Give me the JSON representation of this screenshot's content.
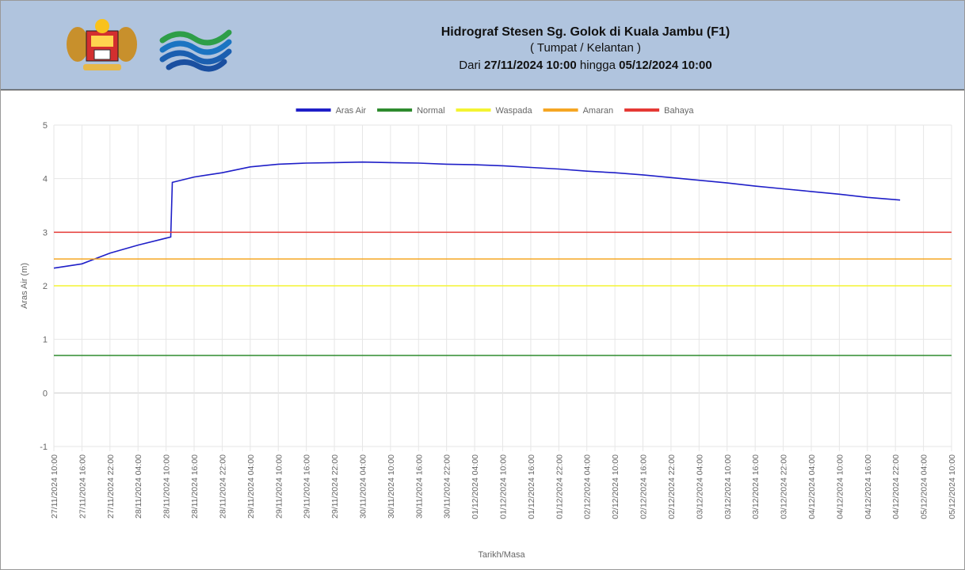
{
  "header": {
    "title": "Hidrograf Stesen Sg. Golok di Kuala Jambu (F1)",
    "subtitle": "( Tumpat / Kelantan )",
    "range_prefix": "Dari",
    "range_start": "27/11/2024 10:00",
    "range_mid": "hingga",
    "range_end": "05/12/2024 10:00"
  },
  "chart_data": {
    "type": "line",
    "ylabel": "Aras Air (m)",
    "xlabel": "Tarikh/Masa",
    "xlim": [
      "27/11/2024 10:00",
      "05/12/2024 10:00"
    ],
    "xticks": [
      "27/11/2024 10:00",
      "27/11/2024 16:00",
      "27/11/2024 22:00",
      "28/11/2024 04:00",
      "28/11/2024 10:00",
      "28/11/2024 16:00",
      "28/11/2024 22:00",
      "29/11/2024 04:00",
      "29/11/2024 10:00",
      "29/11/2024 16:00",
      "29/11/2024 22:00",
      "30/11/2024 04:00",
      "30/11/2024 10:00",
      "30/11/2024 16:00",
      "30/11/2024 22:00",
      "01/12/2024 04:00",
      "01/12/2024 10:00",
      "01/12/2024 16:00",
      "01/12/2024 22:00",
      "02/12/2024 04:00",
      "02/12/2024 10:00",
      "02/12/2024 16:00",
      "02/12/2024 22:00",
      "03/12/2024 04:00",
      "03/12/2024 10:00",
      "03/12/2024 16:00",
      "03/12/2024 22:00",
      "04/12/2024 04:00",
      "04/12/2024 10:00",
      "04/12/2024 16:00",
      "04/12/2024 22:00",
      "05/12/2024 04:00",
      "05/12/2024 10:00"
    ],
    "ylim": [
      -1,
      5
    ],
    "yticks": [
      -1,
      0,
      1,
      2,
      3,
      4,
      5
    ],
    "grid": true,
    "legend": "top",
    "series": [
      {
        "name": "Aras Air",
        "color": "#1f1fc8",
        "x": [
          "27/11/2024 10:00",
          "27/11/2024 16:00",
          "27/11/2024 22:00",
          "28/11/2024 04:00",
          "28/11/2024 10:00",
          "28/11/2024 11:00",
          "28/11/2024 11:20",
          "28/11/2024 16:00",
          "28/11/2024 22:00",
          "29/11/2024 04:00",
          "29/11/2024 10:00",
          "29/11/2024 16:00",
          "29/11/2024 22:00",
          "30/11/2024 04:00",
          "30/11/2024 10:00",
          "30/11/2024 16:00",
          "30/11/2024 22:00",
          "01/12/2024 04:00",
          "01/12/2024 10:00",
          "01/12/2024 16:00",
          "01/12/2024 22:00",
          "02/12/2024 04:00",
          "02/12/2024 10:00",
          "02/12/2024 16:00",
          "02/12/2024 22:00",
          "03/12/2024 04:00",
          "03/12/2024 10:00",
          "03/12/2024 16:00",
          "03/12/2024 22:00",
          "04/12/2024 04:00",
          "04/12/2024 10:00",
          "04/12/2024 16:00",
          "04/12/2024 23:00"
        ],
        "values": [
          2.33,
          2.41,
          2.61,
          2.76,
          2.89,
          2.91,
          3.93,
          4.03,
          4.11,
          4.22,
          4.27,
          4.29,
          4.3,
          4.31,
          4.3,
          4.29,
          4.27,
          4.26,
          4.24,
          4.21,
          4.18,
          4.14,
          4.11,
          4.07,
          4.02,
          3.97,
          3.92,
          3.86,
          3.81,
          3.76,
          3.71,
          3.65,
          3.6
        ]
      },
      {
        "name": "Normal",
        "color": "#2e8b2e",
        "value": 0.7
      },
      {
        "name": "Waspada",
        "color": "#f4f432",
        "value": 2
      },
      {
        "name": "Amaran",
        "color": "#f5a623",
        "value": 2.5
      },
      {
        "name": "Bahaya",
        "color": "#e53935",
        "value": 3
      }
    ]
  }
}
